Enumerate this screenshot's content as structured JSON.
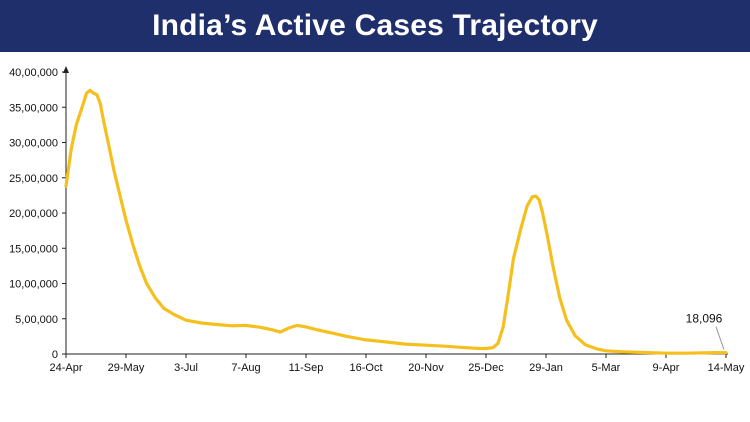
{
  "header": {
    "title": "India’s Active Cases Trajectory",
    "background": "#1f2f6b",
    "text_color": "#ffffff"
  },
  "chart_data": {
    "type": "line",
    "title": "India’s Active Cases Trajectory",
    "xlabel": "",
    "ylabel": "",
    "ylim": [
      0,
      4000000
    ],
    "y_ticks": [
      0,
      500000,
      1000000,
      1500000,
      2000000,
      2500000,
      3000000,
      3500000,
      4000000
    ],
    "y_tick_labels": [
      "0",
      "5,00,000",
      "10,00,000",
      "15,00,000",
      "20,00,000",
      "25,00,000",
      "30,00,000",
      "35,00,000",
      "40,00,000"
    ],
    "x_start_date": "2021-04-24",
    "x_end_date": "2022-05-14",
    "x_tick_labels": [
      "24-Apr",
      "29-May",
      "3-Jul",
      "7-Aug",
      "11-Sep",
      "16-Oct",
      "20-Nov",
      "25-Dec",
      "29-Jan",
      "5-Mar",
      "9-Apr",
      "14-May"
    ],
    "x_tick_dates": [
      "2021-04-24",
      "2021-05-29",
      "2021-07-03",
      "2021-08-07",
      "2021-09-11",
      "2021-10-16",
      "2021-11-20",
      "2021-12-25",
      "2022-01-29",
      "2022-03-05",
      "2022-04-09",
      "2022-05-14"
    ],
    "grid": false,
    "legend": "none",
    "series": [
      {
        "color": "#f5bf1e",
        "points": [
          [
            "2021-04-24",
            2380000
          ],
          [
            "2021-04-27",
            2900000
          ],
          [
            "2021-04-30",
            3250000
          ],
          [
            "2021-05-03",
            3470000
          ],
          [
            "2021-05-06",
            3700000
          ],
          [
            "2021-05-08",
            3740000
          ],
          [
            "2021-05-10",
            3700000
          ],
          [
            "2021-05-12",
            3680000
          ],
          [
            "2021-05-14",
            3550000
          ],
          [
            "2021-05-16",
            3300000
          ],
          [
            "2021-05-19",
            2950000
          ],
          [
            "2021-05-22",
            2600000
          ],
          [
            "2021-05-25",
            2300000
          ],
          [
            "2021-05-29",
            1900000
          ],
          [
            "2021-06-02",
            1550000
          ],
          [
            "2021-06-06",
            1250000
          ],
          [
            "2021-06-10",
            1000000
          ],
          [
            "2021-06-15",
            800000
          ],
          [
            "2021-06-20",
            650000
          ],
          [
            "2021-06-26",
            560000
          ],
          [
            "2021-07-03",
            480000
          ],
          [
            "2021-07-12",
            440000
          ],
          [
            "2021-07-20",
            420000
          ],
          [
            "2021-07-30",
            400000
          ],
          [
            "2021-08-07",
            405000
          ],
          [
            "2021-08-15",
            380000
          ],
          [
            "2021-08-22",
            345000
          ],
          [
            "2021-08-27",
            310000
          ],
          [
            "2021-09-01",
            370000
          ],
          [
            "2021-09-06",
            405000
          ],
          [
            "2021-09-11",
            385000
          ],
          [
            "2021-09-18",
            340000
          ],
          [
            "2021-09-26",
            300000
          ],
          [
            "2021-10-05",
            250000
          ],
          [
            "2021-10-16",
            200000
          ],
          [
            "2021-10-28",
            170000
          ],
          [
            "2021-11-08",
            140000
          ],
          [
            "2021-11-20",
            125000
          ],
          [
            "2021-12-01",
            110000
          ],
          [
            "2021-12-10",
            95000
          ],
          [
            "2021-12-20",
            80000
          ],
          [
            "2021-12-25",
            78000
          ],
          [
            "2021-12-29",
            90000
          ],
          [
            "2022-01-01",
            150000
          ],
          [
            "2022-01-04",
            380000
          ],
          [
            "2022-01-07",
            850000
          ],
          [
            "2022-01-10",
            1350000
          ],
          [
            "2022-01-14",
            1750000
          ],
          [
            "2022-01-18",
            2100000
          ],
          [
            "2022-01-21",
            2230000
          ],
          [
            "2022-01-23",
            2240000
          ],
          [
            "2022-01-25",
            2190000
          ],
          [
            "2022-01-27",
            2000000
          ],
          [
            "2022-01-30",
            1650000
          ],
          [
            "2022-02-02",
            1250000
          ],
          [
            "2022-02-06",
            800000
          ],
          [
            "2022-02-10",
            480000
          ],
          [
            "2022-02-15",
            260000
          ],
          [
            "2022-02-21",
            130000
          ],
          [
            "2022-02-28",
            70000
          ],
          [
            "2022-03-05",
            45000
          ],
          [
            "2022-03-15",
            30000
          ],
          [
            "2022-03-25",
            22000
          ],
          [
            "2022-04-09",
            11000
          ],
          [
            "2022-04-20",
            12000
          ],
          [
            "2022-05-01",
            16000
          ],
          [
            "2022-05-08",
            20000
          ],
          [
            "2022-05-14",
            18096
          ]
        ]
      }
    ],
    "annotations": [
      {
        "text": "18,096",
        "x": "2022-05-14",
        "y": 18096
      }
    ]
  }
}
